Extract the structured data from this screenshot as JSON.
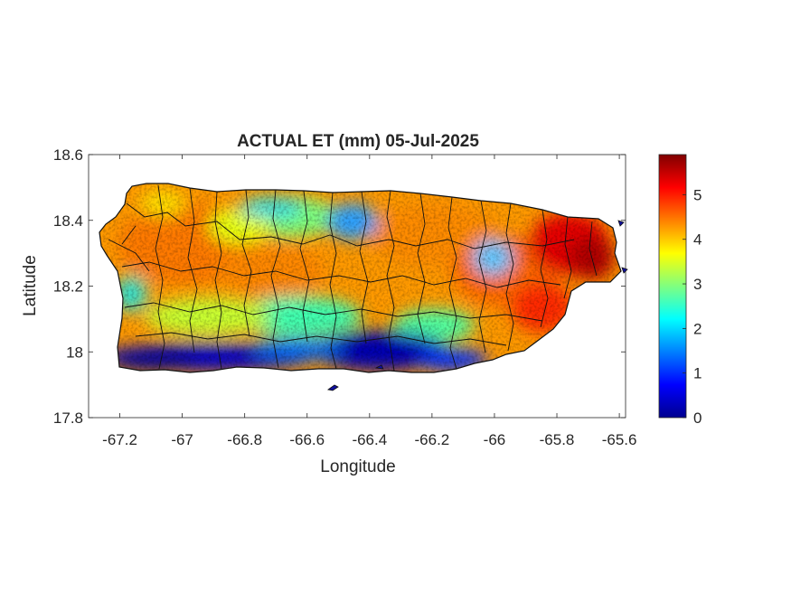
{
  "figure": {
    "title": "ACTUAL ET (mm) 05-Jul-2025",
    "xlabel": "Longitude",
    "ylabel": "Latitude"
  },
  "chart_data": {
    "type": "heatmap",
    "title": "ACTUAL ET (mm) 05-Jul-2025",
    "xlabel": "Longitude",
    "ylabel": "Latitude",
    "xlim": [
      -67.3,
      -65.58
    ],
    "ylim": [
      17.8,
      18.6
    ],
    "xticks": [
      -67.2,
      -67,
      -66.8,
      -66.6,
      -66.4,
      -66.2,
      -66,
      -65.8,
      -65.6
    ],
    "xtick_labels": [
      "-67.2",
      "-67",
      "-66.8",
      "-66.6",
      "-66.4",
      "-66.2",
      "-66",
      "-65.8",
      "-65.6"
    ],
    "yticks": [
      17.8,
      18,
      18.2,
      18.4,
      18.6
    ],
    "ytick_labels": [
      "17.8",
      "18",
      "18.2",
      "18.4",
      "18.6"
    ],
    "colormap": "jet",
    "colorbar": {
      "range": [
        0,
        5.9
      ],
      "ticks": [
        0,
        1,
        2,
        3,
        4,
        5
      ],
      "tick_labels": [
        "0",
        "1",
        "2",
        "3",
        "4",
        "5"
      ]
    },
    "grid": false,
    "region": "Puerto Rico",
    "notes": "Actual evapotranspiration field; low values (0-1 mm) along the south coast, 2-3 mm in south-central interior and scattered north-central patches, 4-5.5 mm over most of the interior and northeast."
  }
}
